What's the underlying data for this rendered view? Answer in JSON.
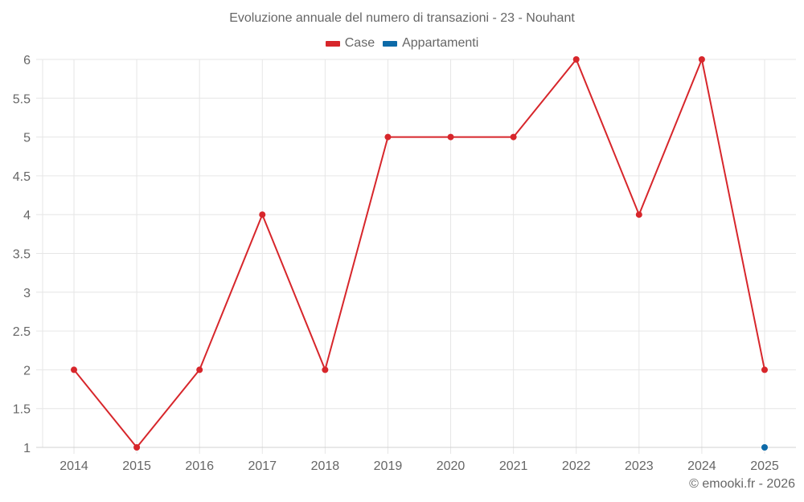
{
  "chart_data": {
    "type": "line",
    "title": "Evoluzione annuale del numero di transazioni - 23 - Nouhant",
    "xlabel": "",
    "ylabel": "",
    "categories": [
      "2014",
      "2015",
      "2016",
      "2017",
      "2018",
      "2019",
      "2020",
      "2021",
      "2022",
      "2023",
      "2024",
      "2025"
    ],
    "series": [
      {
        "name": "Case",
        "color": "#d7262b",
        "values": [
          2,
          1,
          2,
          4,
          2,
          5,
          5,
          5,
          6,
          4,
          6,
          2
        ]
      },
      {
        "name": "Appartamenti",
        "color": "#0d6aa8",
        "values": [
          null,
          null,
          null,
          null,
          null,
          null,
          null,
          null,
          null,
          null,
          null,
          1
        ]
      }
    ],
    "yticks": [
      "1",
      "1.5",
      "2",
      "2.5",
      "3",
      "3.5",
      "4",
      "4.5",
      "5",
      "5.5",
      "6"
    ],
    "ylim": [
      1,
      6
    ],
    "grid": true,
    "legend_position": "top"
  },
  "legend": {
    "items": [
      {
        "label": "Case",
        "color": "#d7262b"
      },
      {
        "label": "Appartamenti",
        "color": "#0d6aa8"
      }
    ]
  },
  "credit": "© emooki.fr - 2026"
}
